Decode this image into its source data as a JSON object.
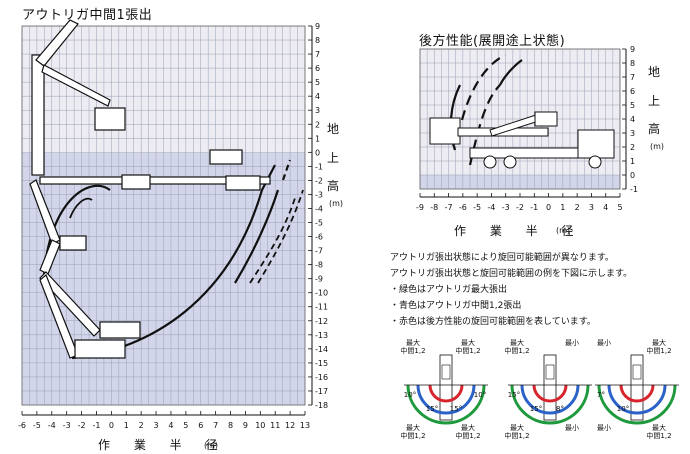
{
  "left_chart": {
    "title": "アウトリガ中間1張出",
    "y_label_chars": [
      "地",
      "上",
      "高"
    ],
    "y_unit": "(m)",
    "x_label": "作 業 半 径",
    "x_unit": "(m)",
    "x_ticks": [
      "-6",
      "-5",
      "-4",
      "-3",
      "-2",
      "-1",
      "0",
      "1",
      "2",
      "3",
      "4",
      "5",
      "6",
      "7",
      "8",
      "9",
      "10",
      "11",
      "12",
      "13"
    ],
    "y_ticks": [
      "9",
      "8",
      "7",
      "6",
      "5",
      "4",
      "3",
      "2",
      "1",
      "0",
      "-1",
      "-2",
      "-3",
      "-4",
      "-5",
      "-6",
      "-7",
      "-8",
      "-9",
      "-10",
      "-11",
      "-12",
      "-13",
      "-14",
      "-15",
      "-16",
      "-17",
      "-18"
    ],
    "grid_color": "#cfd3e6",
    "line_color": "#111111"
  },
  "right_chart": {
    "title": "後方性能(展開途上状態)",
    "y_label_chars": [
      "地",
      "上",
      "高"
    ],
    "y_unit": "(m)",
    "x_label": "作 業 半 径",
    "x_unit": "(m)",
    "x_ticks": [
      "-9",
      "-8",
      "-7",
      "-6",
      "-5",
      "-4",
      "-3",
      "-2",
      "-1",
      "0",
      "1",
      "2",
      "3",
      "4",
      "5"
    ],
    "y_ticks": [
      "9",
      "8",
      "7",
      "6",
      "5",
      "4",
      "3",
      "2",
      "1",
      "0",
      "-1"
    ]
  },
  "notes": [
    "アウトリガ張出状態により旋回可能範囲が異なります。",
    "アウトリガ張出状態と旋回可能範囲の例を下図に示します。",
    "・緑色はアウトリガ最大張出",
    "・青色はアウトリガ中間1,2張出",
    "・赤色は後方性能の旋回可能範囲を表しています。"
  ],
  "outrigger_diagrams": [
    {
      "top_left": [
        "最大",
        "中間1,2"
      ],
      "top_right": [
        "最大",
        "中間1,2"
      ],
      "bottom_left": [
        "最大",
        "中間1,2"
      ],
      "bottom_right": [
        "最大",
        "中間1,2"
      ],
      "angles": [
        "10°",
        "15°",
        "15°",
        "10°"
      ]
    },
    {
      "top_left": [
        "最大",
        "中間1,2"
      ],
      "top_right": [
        "最小"
      ],
      "bottom_left": [
        "最大",
        "中間1,2"
      ],
      "bottom_right": [
        "最小"
      ],
      "angles": [
        "15°",
        "15°",
        "8°"
      ]
    },
    {
      "top_left": [
        "最小"
      ],
      "top_right": [
        "最大",
        "中間1,2"
      ],
      "bottom_left": [
        "最小"
      ],
      "bottom_right": [
        "最大",
        "中間1,2"
      ],
      "angles": [
        "7°",
        "10°"
      ]
    }
  ],
  "colors": {
    "green": "#1e9a3c",
    "blue": "#2a62c8",
    "red": "#d8242c",
    "grid_fill": "#e9eaf3",
    "lower_band": "#c9cde6"
  }
}
